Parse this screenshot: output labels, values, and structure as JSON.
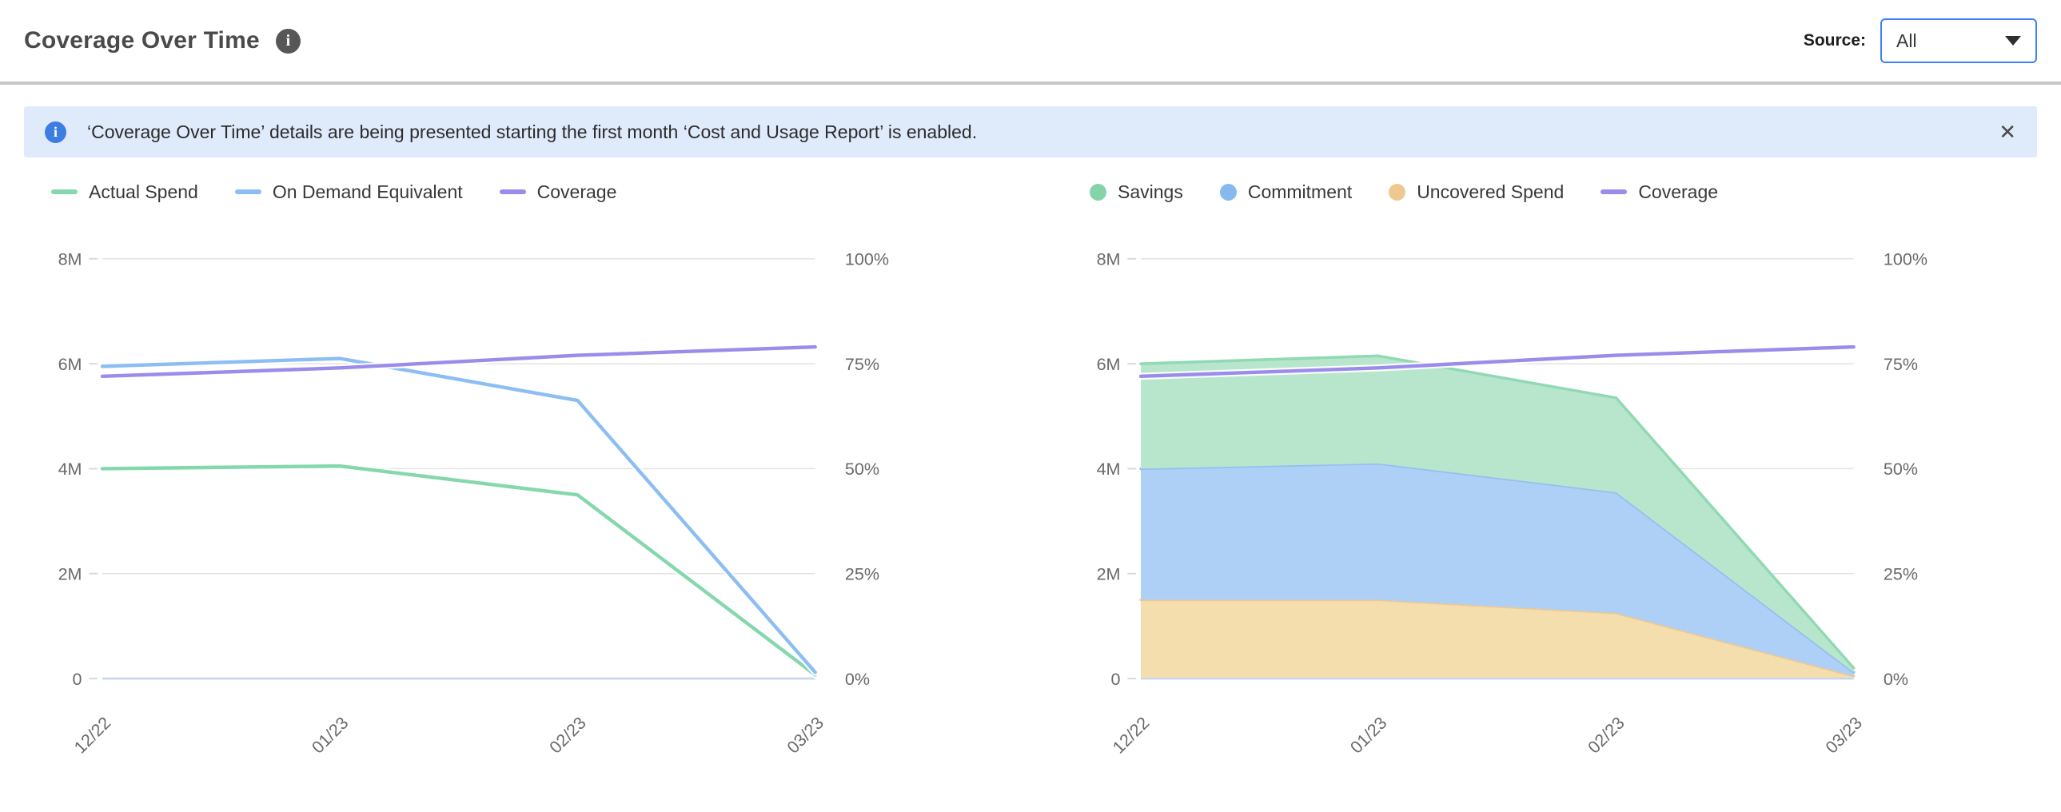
{
  "header": {
    "title": "Coverage Over Time",
    "source_label": "Source:",
    "source_value": "All"
  },
  "icons": {
    "info_glyph": "i",
    "close_glyph": "✕"
  },
  "banner": {
    "text": "‘Coverage Over Time’ details are being presented starting the first month ‘Cost and Usage Report’ is enabled."
  },
  "colors": {
    "accent_blue": "#3c82f4",
    "banner_bg": "#dfeafb",
    "banner_icon": "#3d7de2",
    "gridline": "#e3e3e3",
    "zero_line": "#c9d7ec",
    "axis_text": "#6a6a6a",
    "green": "#85d7ac",
    "blue": "#8cbef2",
    "purple": "#9d8bec",
    "orange": "#eec88e"
  },
  "chart_data": [
    {
      "type": "line",
      "categories": [
        "12/22",
        "01/23",
        "02/23",
        "03/23"
      ],
      "series": [
        {
          "name": "Actual Spend",
          "kind": "line",
          "axis": "value",
          "color": "#85d7ac",
          "values": [
            4000000,
            4050000,
            3500000,
            70000
          ]
        },
        {
          "name": "On Demand Equivalent",
          "kind": "line",
          "axis": "value",
          "color": "#8cbef2",
          "values": [
            5950000,
            6100000,
            5300000,
            120000
          ]
        },
        {
          "name": "Coverage",
          "kind": "line",
          "axis": "percent",
          "color": "#9d8bec",
          "values": [
            72,
            74,
            77,
            79
          ]
        }
      ],
      "value_axis": {
        "min": 0,
        "max": 8000000,
        "tick_labels": [
          "8M",
          "6M",
          "4M",
          "2M",
          "0"
        ]
      },
      "percent_axis": {
        "min": 0,
        "max": 100,
        "tick_labels": [
          "100%",
          "75%",
          "50%",
          "25%",
          "0%"
        ]
      },
      "grid": true,
      "legend_position": "top-left",
      "legend": [
        {
          "label": "Actual Spend",
          "marker": "line",
          "color": "#85d7ac"
        },
        {
          "label": "On Demand Equivalent",
          "marker": "line",
          "color": "#8cbef2"
        },
        {
          "label": "Coverage",
          "marker": "line",
          "color": "#9d8bec"
        }
      ]
    },
    {
      "type": "area",
      "stacked": true,
      "categories": [
        "12/22",
        "01/23",
        "02/23",
        "03/23"
      ],
      "series": [
        {
          "name": "Uncovered Spend",
          "kind": "area",
          "axis": "value",
          "fill": "#f5dead",
          "edge": "#edc992",
          "values": [
            1500000,
            1500000,
            1250000,
            50000
          ]
        },
        {
          "name": "Commitment",
          "kind": "area",
          "axis": "value",
          "fill": "#aed0f7",
          "edge": "#94bef2",
          "values": [
            2500000,
            2600000,
            2300000,
            70000
          ]
        },
        {
          "name": "Savings",
          "kind": "area",
          "axis": "value",
          "fill": "#b8e6cd",
          "edge": "#8fd9b3",
          "values": [
            2000000,
            2050000,
            1800000,
            80000
          ]
        },
        {
          "name": "Coverage",
          "kind": "line",
          "axis": "percent",
          "color": "#9d8bec",
          "values": [
            72,
            74,
            77,
            79
          ]
        }
      ],
      "value_axis": {
        "min": 0,
        "max": 8000000,
        "tick_labels": [
          "8M",
          "6M",
          "4M",
          "2M",
          "0"
        ]
      },
      "percent_axis": {
        "min": 0,
        "max": 100,
        "tick_labels": [
          "100%",
          "75%",
          "50%",
          "25%",
          "0%"
        ]
      },
      "grid": true,
      "legend_position": "top-left",
      "legend": [
        {
          "label": "Savings",
          "marker": "dot",
          "color": "#85d3a9"
        },
        {
          "label": "Commitment",
          "marker": "dot",
          "color": "#85b9f0"
        },
        {
          "label": "Uncovered Spend",
          "marker": "dot",
          "color": "#eec88e"
        },
        {
          "label": "Coverage",
          "marker": "line",
          "color": "#9d8bec"
        }
      ]
    }
  ]
}
